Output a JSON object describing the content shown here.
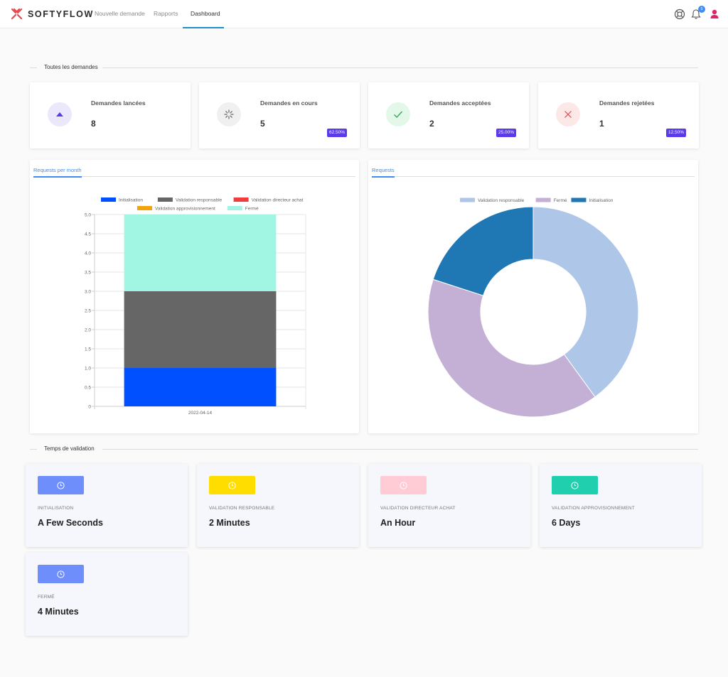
{
  "header": {
    "brand": "SOFTYFLOW",
    "nav": [
      {
        "label": "Nouvelle demande"
      },
      {
        "label": "Rapports"
      },
      {
        "label": "Dashboard"
      }
    ],
    "notification_count": "5",
    "colors": {
      "brand": "#e5484d",
      "nav_active": "#1e90d0",
      "badge": "#3d8ef0",
      "user": "#e0246a"
    }
  },
  "sections": {
    "all_requests": "Toutes les demandes",
    "validation_time": "Temps de validation"
  },
  "stats": [
    {
      "title": "Demandes lancées",
      "value": "8",
      "percent": "",
      "icon": "triangle-up-icon",
      "icon_color": "#5b3ae8",
      "icon_bg": "#ebe8fc"
    },
    {
      "title": "Demandes en cours",
      "value": "5",
      "percent": "62.50%",
      "icon": "spinner-icon",
      "icon_color": "#666666",
      "icon_bg": "#f0f0f0"
    },
    {
      "title": "Demandes acceptées",
      "value": "2",
      "percent": "25.00%",
      "icon": "check-icon",
      "icon_color": "#2fa84f",
      "icon_bg": "#e3f8e8"
    },
    {
      "title": "Demandes rejetées",
      "value": "1",
      "percent": "12.50%",
      "icon": "close-icon",
      "icon_color": "#e5484d",
      "icon_bg": "#fde8e8"
    }
  ],
  "charts": {
    "bar_tab": "Requests per month",
    "pie_tab": "Requests"
  },
  "chart_data": [
    {
      "type": "bar",
      "stacked": true,
      "categories": [
        "2022-04-14"
      ],
      "series": [
        {
          "name": "Initialisation",
          "values": [
            1
          ],
          "color": "#0050ff"
        },
        {
          "name": "Validation responsable",
          "values": [
            2
          ],
          "color": "#666666"
        },
        {
          "name": "Validation directeur achat",
          "values": [
            0
          ],
          "color": "#f03c3c"
        },
        {
          "name": "Validation approvisionnement",
          "values": [
            0
          ],
          "color": "#f5a30a"
        },
        {
          "name": "Fermé",
          "values": [
            2
          ],
          "color": "#a0f5e3"
        }
      ],
      "ylim": [
        0,
        5
      ],
      "yticks": [
        "0",
        "0.5",
        "1.0",
        "1.5",
        "2.0",
        "2.5",
        "3.0",
        "3.5",
        "4.0",
        "4.5",
        "5.0"
      ],
      "grid": true,
      "legend": "top"
    },
    {
      "type": "pie",
      "donut": true,
      "labels": [
        "Validation responsable",
        "Fermé",
        "Initialisation"
      ],
      "values": [
        2,
        2,
        1
      ],
      "colors": [
        "#aec6e8",
        "#c5b0d5",
        "#1f77b4"
      ],
      "legend": "top"
    }
  ],
  "validation_times": [
    {
      "label": "INITIALISATION",
      "value": "A Few Seconds",
      "color": "#6e8efb"
    },
    {
      "label": "VALIDATION RESPONSABLE",
      "value": "2 Minutes",
      "color": "#ffdd00"
    },
    {
      "label": "VALIDATION DIRECTEUR ACHAT",
      "value": "An Hour",
      "color": "#ffccd5"
    },
    {
      "label": "VALIDATION APPROVISIONNEMENT",
      "value": "6 Days",
      "color": "#1fcfae"
    },
    {
      "label": "FERMÉ",
      "value": "4 Minutes",
      "color": "#6e8efb"
    }
  ]
}
